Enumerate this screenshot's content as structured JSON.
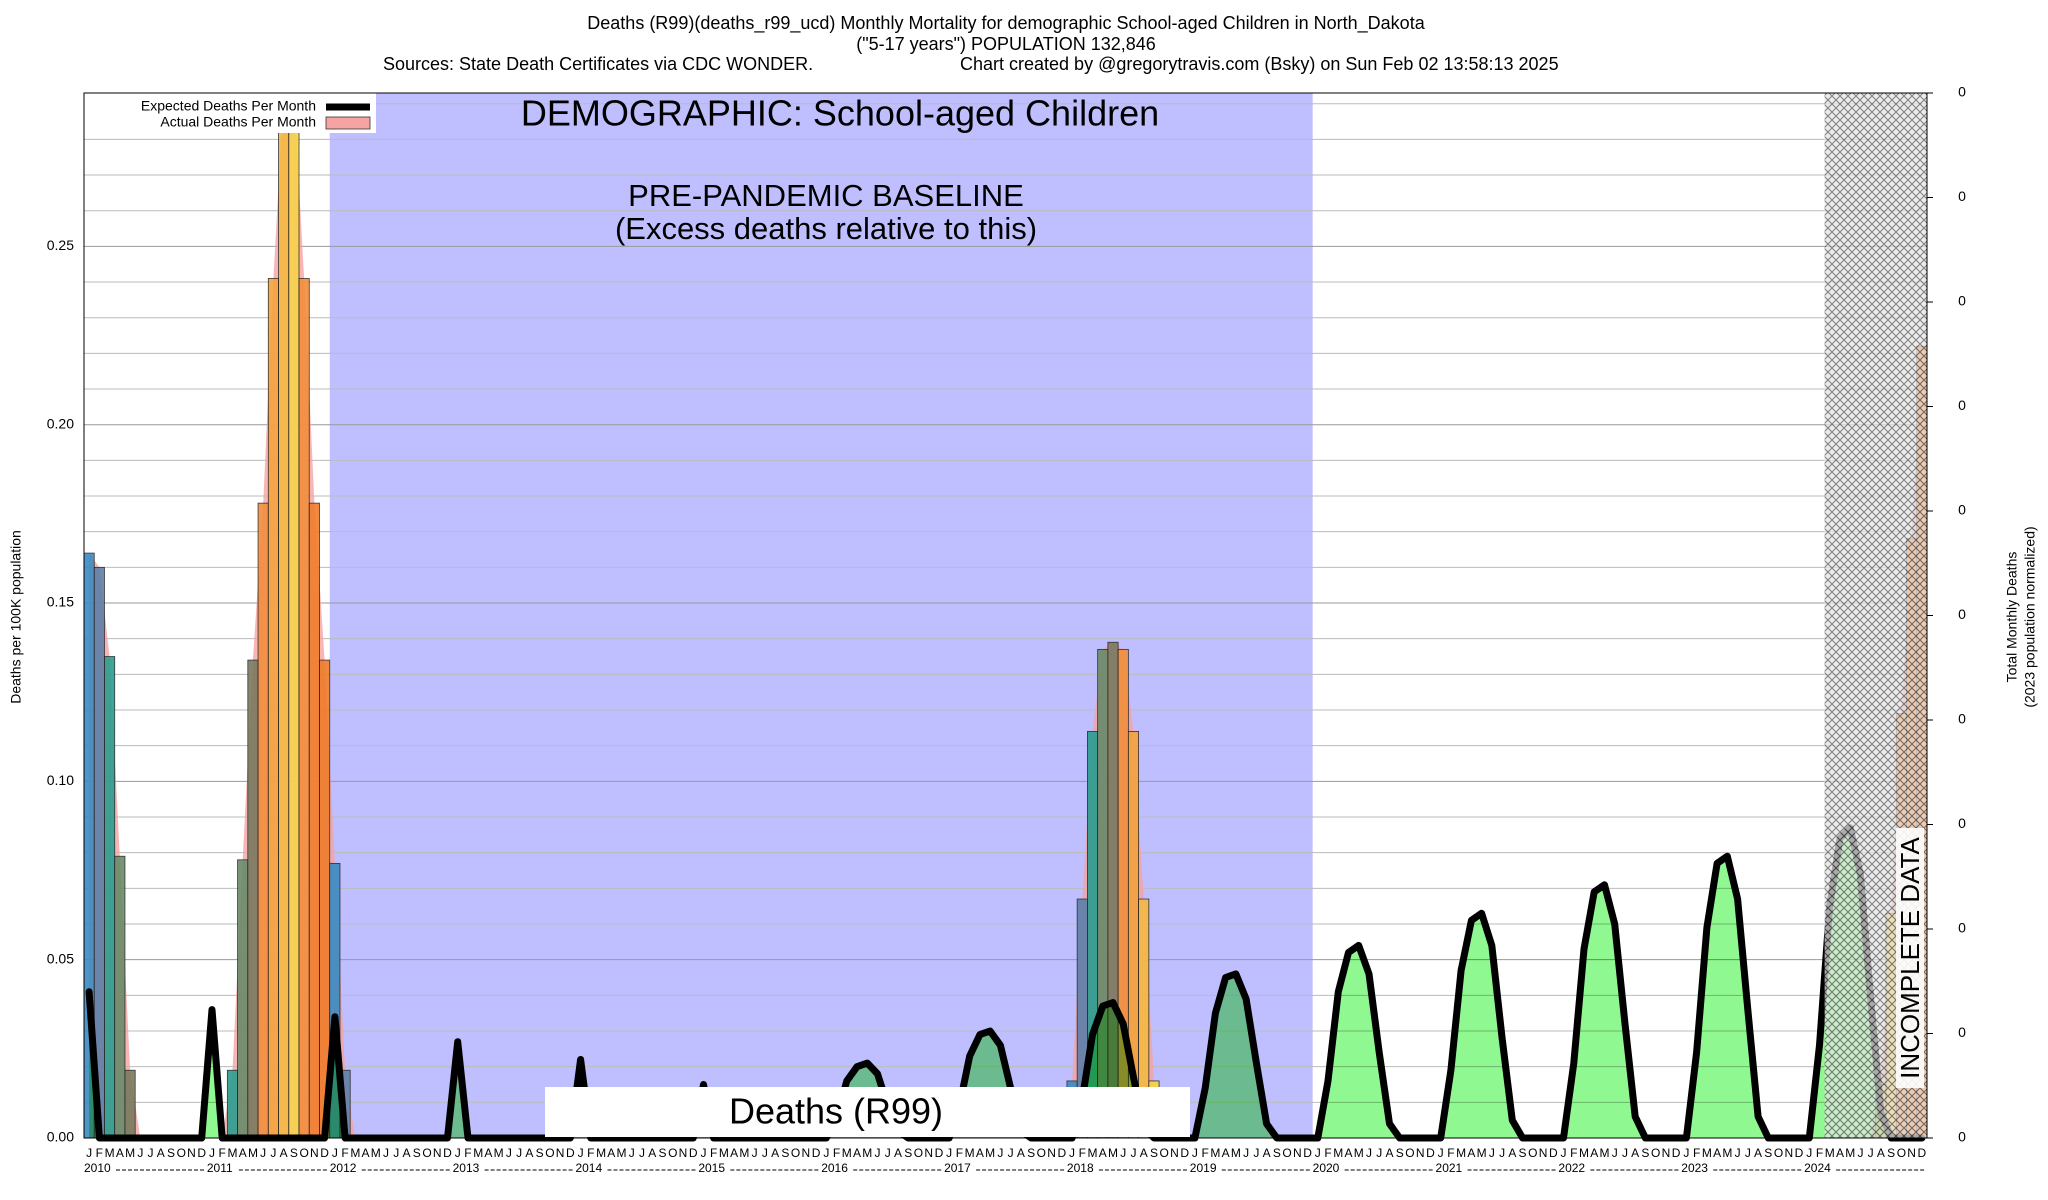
{
  "chart_data": {
    "type": "bar",
    "title": "Deaths (R99)(deaths_r99_ucd) Monthly Mortality for demographic School-aged Children in North_Dakota",
    "subtitle": "(\"5-17 years\") POPULATION 132,846",
    "source": "Sources: State Death Certificates via CDC WONDER.",
    "credit": "Chart created by @gregorytravis.com (Bsky) on Sun Feb 02 13:58:13 2025",
    "ylabel": "Deaths per 100K population",
    "y2label": [
      "Total Monthly Deaths",
      "(2023 population normalized)"
    ],
    "ylim": [
      0,
      0.293
    ],
    "yticks": [
      {
        "value": 0,
        "label": "0.00"
      },
      {
        "value": 0.05,
        "label": "0.05"
      },
      {
        "value": 0.1,
        "label": "0.10"
      },
      {
        "value": 0.15,
        "label": "0.15"
      },
      {
        "value": 0.2,
        "label": "0.20"
      },
      {
        "value": 0.25,
        "label": "0.25"
      }
    ],
    "yminorticks": [
      0.01,
      0.02,
      0.03,
      0.04,
      0.06,
      0.07,
      0.08,
      0.09,
      0.11,
      0.12,
      0.13,
      0.14,
      0.16,
      0.17,
      0.18,
      0.19,
      0.21,
      0.22,
      0.23,
      0.24,
      0.26,
      0.27,
      0.28,
      0.29
    ],
    "y2lim": [
      0,
      0.389
    ],
    "y2ticks": [
      0,
      {
        "value": 0.0389,
        "label": "0"
      },
      {
        "value": 0.0778,
        "label": "0"
      },
      {
        "value": 0.1167,
        "label": "0"
      },
      {
        "value": 0.1556,
        "label": "0"
      },
      {
        "value": 0.1945,
        "label": "0"
      },
      {
        "value": 0.2334,
        "label": "0"
      },
      {
        "value": 0.2723,
        "label": "0"
      },
      {
        "value": 0.3112,
        "label": "0"
      },
      {
        "value": 0.3501,
        "label": "0"
      },
      {
        "value": 0.389,
        "label": "0"
      }
    ],
    "grid": true,
    "legend": "upper left",
    "years": [
      "2010",
      "2011",
      "2012",
      "2013",
      "2014",
      "2015",
      "2016",
      "2017",
      "2018",
      "2019",
      "2020",
      "2021",
      "2022",
      "2023",
      "2024"
    ],
    "months": [
      "J",
      "F",
      "M",
      "A",
      "M",
      "J",
      "J",
      "A",
      "S",
      "O",
      "N",
      "D"
    ],
    "month_colors": [
      "#3b8bc2",
      "#5f7fa8",
      "#2a9d8f",
      "#6a8a6a",
      "#7a7a60",
      "#f28e3c",
      "#f5a33c",
      "#f4b942",
      "#f7d24a",
      "#f28e3c",
      "#f07e2c",
      "#ef7b2a"
    ],
    "series": [
      {
        "name": "Expected Deaths Per Month",
        "type": "line",
        "color": "#000000",
        "fill": "#90f890",
        "values": [
          0.041,
          0,
          0,
          0,
          0,
          0,
          0,
          0,
          0,
          0,
          0,
          0,
          0.036,
          0,
          0,
          0,
          0,
          0,
          0,
          0,
          0,
          0,
          0,
          0,
          0.034,
          0,
          0,
          0,
          0,
          0,
          0,
          0,
          0,
          0,
          0,
          0,
          0.027,
          0,
          0,
          0,
          0,
          0,
          0,
          0,
          0,
          0,
          0,
          0,
          0.022,
          0,
          0,
          0,
          0,
          0,
          0,
          0,
          0,
          0,
          0,
          0,
          0.015,
          0,
          0,
          0,
          0,
          0,
          0,
          0,
          0,
          0,
          0,
          0,
          0,
          0.006,
          0.016,
          0.02,
          0.021,
          0.018,
          0.009,
          0.002,
          0,
          0,
          0,
          0,
          0,
          0.009,
          0.023,
          0.029,
          0.03,
          0.026,
          0.014,
          0.002,
          0,
          0,
          0,
          0,
          0,
          0.011,
          0.029,
          0.037,
          0.038,
          0.032,
          0.017,
          0.003,
          0,
          0,
          0,
          0,
          0,
          0.014,
          0.035,
          0.045,
          0.046,
          0.039,
          0.021,
          0.004,
          0,
          0,
          0,
          0,
          0,
          0.016,
          0.041,
          0.052,
          0.054,
          0.046,
          0.024,
          0.004,
          0,
          0,
          0,
          0,
          0,
          0.019,
          0.047,
          0.061,
          0.063,
          0.054,
          0.028,
          0.005,
          0,
          0,
          0,
          0,
          0,
          0.021,
          0.053,
          0.069,
          0.071,
          0.06,
          0.032,
          0.006,
          0,
          0,
          0,
          0,
          0,
          0.024,
          0.059,
          0.077,
          0.079,
          0.067,
          0.036,
          0.006,
          0,
          0,
          0,
          0,
          0,
          0.026,
          0.065,
          0.084,
          0.087,
          0.074,
          0.039,
          0.007,
          0,
          0,
          0,
          0
        ]
      },
      {
        "name": "Actual Deaths Per Month",
        "type": "bar",
        "color": "#f5a3a3",
        "values": [
          0.164,
          0.16,
          0.135,
          0.079,
          0.019,
          0,
          0,
          0,
          0,
          0,
          0,
          0,
          0,
          0,
          0.019,
          0.078,
          0.134,
          0.178,
          0.241,
          0.293,
          0.293,
          0.241,
          0.178,
          0.134,
          0.077,
          0.019,
          0,
          0,
          0,
          0,
          0,
          0,
          0,
          0,
          0,
          0,
          0,
          0,
          0,
          0,
          0,
          0,
          0,
          0,
          0,
          0,
          0,
          0,
          0,
          0,
          0,
          0,
          0,
          0,
          0,
          0,
          0,
          0,
          0,
          0,
          0,
          0,
          0,
          0,
          0,
          0,
          0,
          0,
          0,
          0,
          0,
          0,
          0,
          0,
          0,
          0,
          0,
          0,
          0,
          0,
          0,
          0,
          0,
          0,
          0,
          0,
          0,
          0,
          0,
          0,
          0,
          0,
          0,
          0,
          0,
          0,
          0.016,
          0.067,
          0.114,
          0.137,
          0.139,
          0.137,
          0.114,
          0.067,
          0.016,
          0,
          0,
          0,
          0,
          0,
          0,
          0,
          0,
          0,
          0,
          0,
          0,
          0,
          0,
          0,
          0,
          0,
          0,
          0,
          0,
          0,
          0,
          0,
          0,
          0,
          0,
          0,
          0,
          0,
          0,
          0,
          0,
          0,
          0,
          0,
          0,
          0,
          0,
          0,
          0,
          0,
          0,
          0,
          0,
          0,
          0,
          0,
          0,
          0,
          0,
          0,
          0,
          0,
          0,
          0,
          0,
          0,
          0,
          0,
          0,
          0,
          0,
          0,
          0,
          0,
          0,
          0,
          0,
          0,
          0,
          0.015,
          0.063,
          0.119,
          0.168,
          0.222
        ]
      }
    ],
    "regions": [
      {
        "label": "PRE-PANDEMIC BASELINE",
        "note": "(Excess deaths relative to this)",
        "start": 24,
        "end": 120,
        "color": "#bfbfff"
      },
      {
        "label": "INCOMPLETE DATA",
        "start": 170,
        "end": 180,
        "hatch": true
      }
    ],
    "annotations": {
      "demographic": "DEMOGRAPHIC: School-aged Children",
      "cause": "Deaths (R99)"
    }
  }
}
